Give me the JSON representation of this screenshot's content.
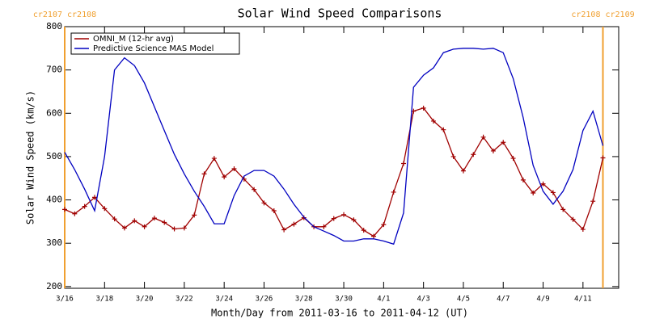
{
  "chart_data": {
    "type": "line",
    "title": "Solar Wind Speed Comparisons",
    "xlabel": "Month/Day from 2011-03-16 to 2011-04-12 (UT)",
    "ylabel": "Solar Wind Speed (km/s)",
    "x": [
      "2011-03-16T00:00",
      "2011-03-16T12:00",
      "2011-03-17T00:00",
      "2011-03-17T12:00",
      "2011-03-18T00:00",
      "2011-03-18T12:00",
      "2011-03-19T00:00",
      "2011-03-19T12:00",
      "2011-03-20T00:00",
      "2011-03-20T12:00",
      "2011-03-21T00:00",
      "2011-03-21T12:00",
      "2011-03-22T00:00",
      "2011-03-22T12:00",
      "2011-03-23T00:00",
      "2011-03-23T12:00",
      "2011-03-24T00:00",
      "2011-03-24T12:00",
      "2011-03-25T00:00",
      "2011-03-25T12:00",
      "2011-03-26T00:00",
      "2011-03-26T12:00",
      "2011-03-27T00:00",
      "2011-03-27T12:00",
      "2011-03-28T00:00",
      "2011-03-28T12:00",
      "2011-03-29T00:00",
      "2011-03-29T12:00",
      "2011-03-30T00:00",
      "2011-03-30T12:00",
      "2011-03-31T00:00",
      "2011-03-31T12:00",
      "2011-04-01T00:00",
      "2011-04-01T12:00",
      "2011-04-02T00:00",
      "2011-04-02T12:00",
      "2011-04-03T00:00",
      "2011-04-03T12:00",
      "2011-04-04T00:00",
      "2011-04-04T12:00",
      "2011-04-05T00:00",
      "2011-04-05T12:00",
      "2011-04-06T00:00",
      "2011-04-06T12:00",
      "2011-04-07T00:00",
      "2011-04-07T12:00",
      "2011-04-08T00:00",
      "2011-04-08T12:00",
      "2011-04-09T00:00",
      "2011-04-09T12:00",
      "2011-04-10T00:00",
      "2011-04-10T12:00",
      "2011-04-11T00:00",
      "2011-04-11T12:00",
      "2011-04-12T00:00"
    ],
    "series": [
      {
        "name": "OMNI_M (12-hr avg)",
        "color": "#a00000",
        "marker": "+",
        "values": [
          378,
          368,
          385,
          406,
          380,
          356,
          335,
          352,
          338,
          358,
          348,
          333,
          335,
          365,
          460,
          496,
          453,
          472,
          448,
          424,
          393,
          375,
          331,
          344,
          359,
          338,
          338,
          357,
          366,
          354,
          330,
          316,
          343,
          418,
          484,
          605,
          612,
          582,
          562,
          500,
          467,
          505,
          545,
          513,
          533,
          496,
          446,
          416,
          437,
          417,
          378,
          355,
          332,
          397,
          497
        ]
      },
      {
        "name": "Predictive Science MAS Model",
        "color": "#0000c0",
        "values": [
          510,
          470,
          425,
          375,
          500,
          700,
          728,
          710,
          670,
          615,
          560,
          505,
          460,
          420,
          385,
          345,
          345,
          410,
          455,
          468,
          468,
          455,
          425,
          390,
          360,
          338,
          328,
          318,
          305,
          305,
          310,
          310,
          305,
          298,
          370,
          660,
          688,
          705,
          740,
          748,
          750,
          750,
          748,
          750,
          740,
          680,
          590,
          480,
          420,
          390,
          420,
          470,
          560,
          605,
          525
        ]
      }
    ],
    "markers": [
      {
        "x": "2011-03-16T00:00",
        "label": "cr2107 cr2108",
        "color": "#f0a030"
      },
      {
        "x": "2011-04-12T00:00",
        "label": "cr2108 cr2109",
        "color": "#f0a030"
      }
    ],
    "xlim": [
      "2011-03-16T00:00",
      "2011-04-12T19:00"
    ],
    "xticks": [
      {
        "value": "2011-03-16T00:00",
        "label": "3/16"
      },
      {
        "value": "2011-03-18T00:00",
        "label": "3/18"
      },
      {
        "value": "2011-03-20T00:00",
        "label": "3/20"
      },
      {
        "value": "2011-03-22T00:00",
        "label": "3/22"
      },
      {
        "value": "2011-03-24T00:00",
        "label": "3/24"
      },
      {
        "value": "2011-03-26T00:00",
        "label": "3/26"
      },
      {
        "value": "2011-03-28T00:00",
        "label": "3/28"
      },
      {
        "value": "2011-03-30T00:00",
        "label": "3/30"
      },
      {
        "value": "2011-04-01T00:00",
        "label": "4/1"
      },
      {
        "value": "2011-04-03T00:00",
        "label": "4/3"
      },
      {
        "value": "2011-04-05T00:00",
        "label": "4/5"
      },
      {
        "value": "2011-04-07T00:00",
        "label": "4/7"
      },
      {
        "value": "2011-04-09T00:00",
        "label": "4/9"
      },
      {
        "value": "2011-04-11T00:00",
        "label": "4/11"
      }
    ],
    "ylim": [
      196,
      800
    ],
    "yticks": [
      200,
      300,
      400,
      500,
      600,
      700,
      800
    ],
    "grid": false,
    "legend": "upper left"
  }
}
